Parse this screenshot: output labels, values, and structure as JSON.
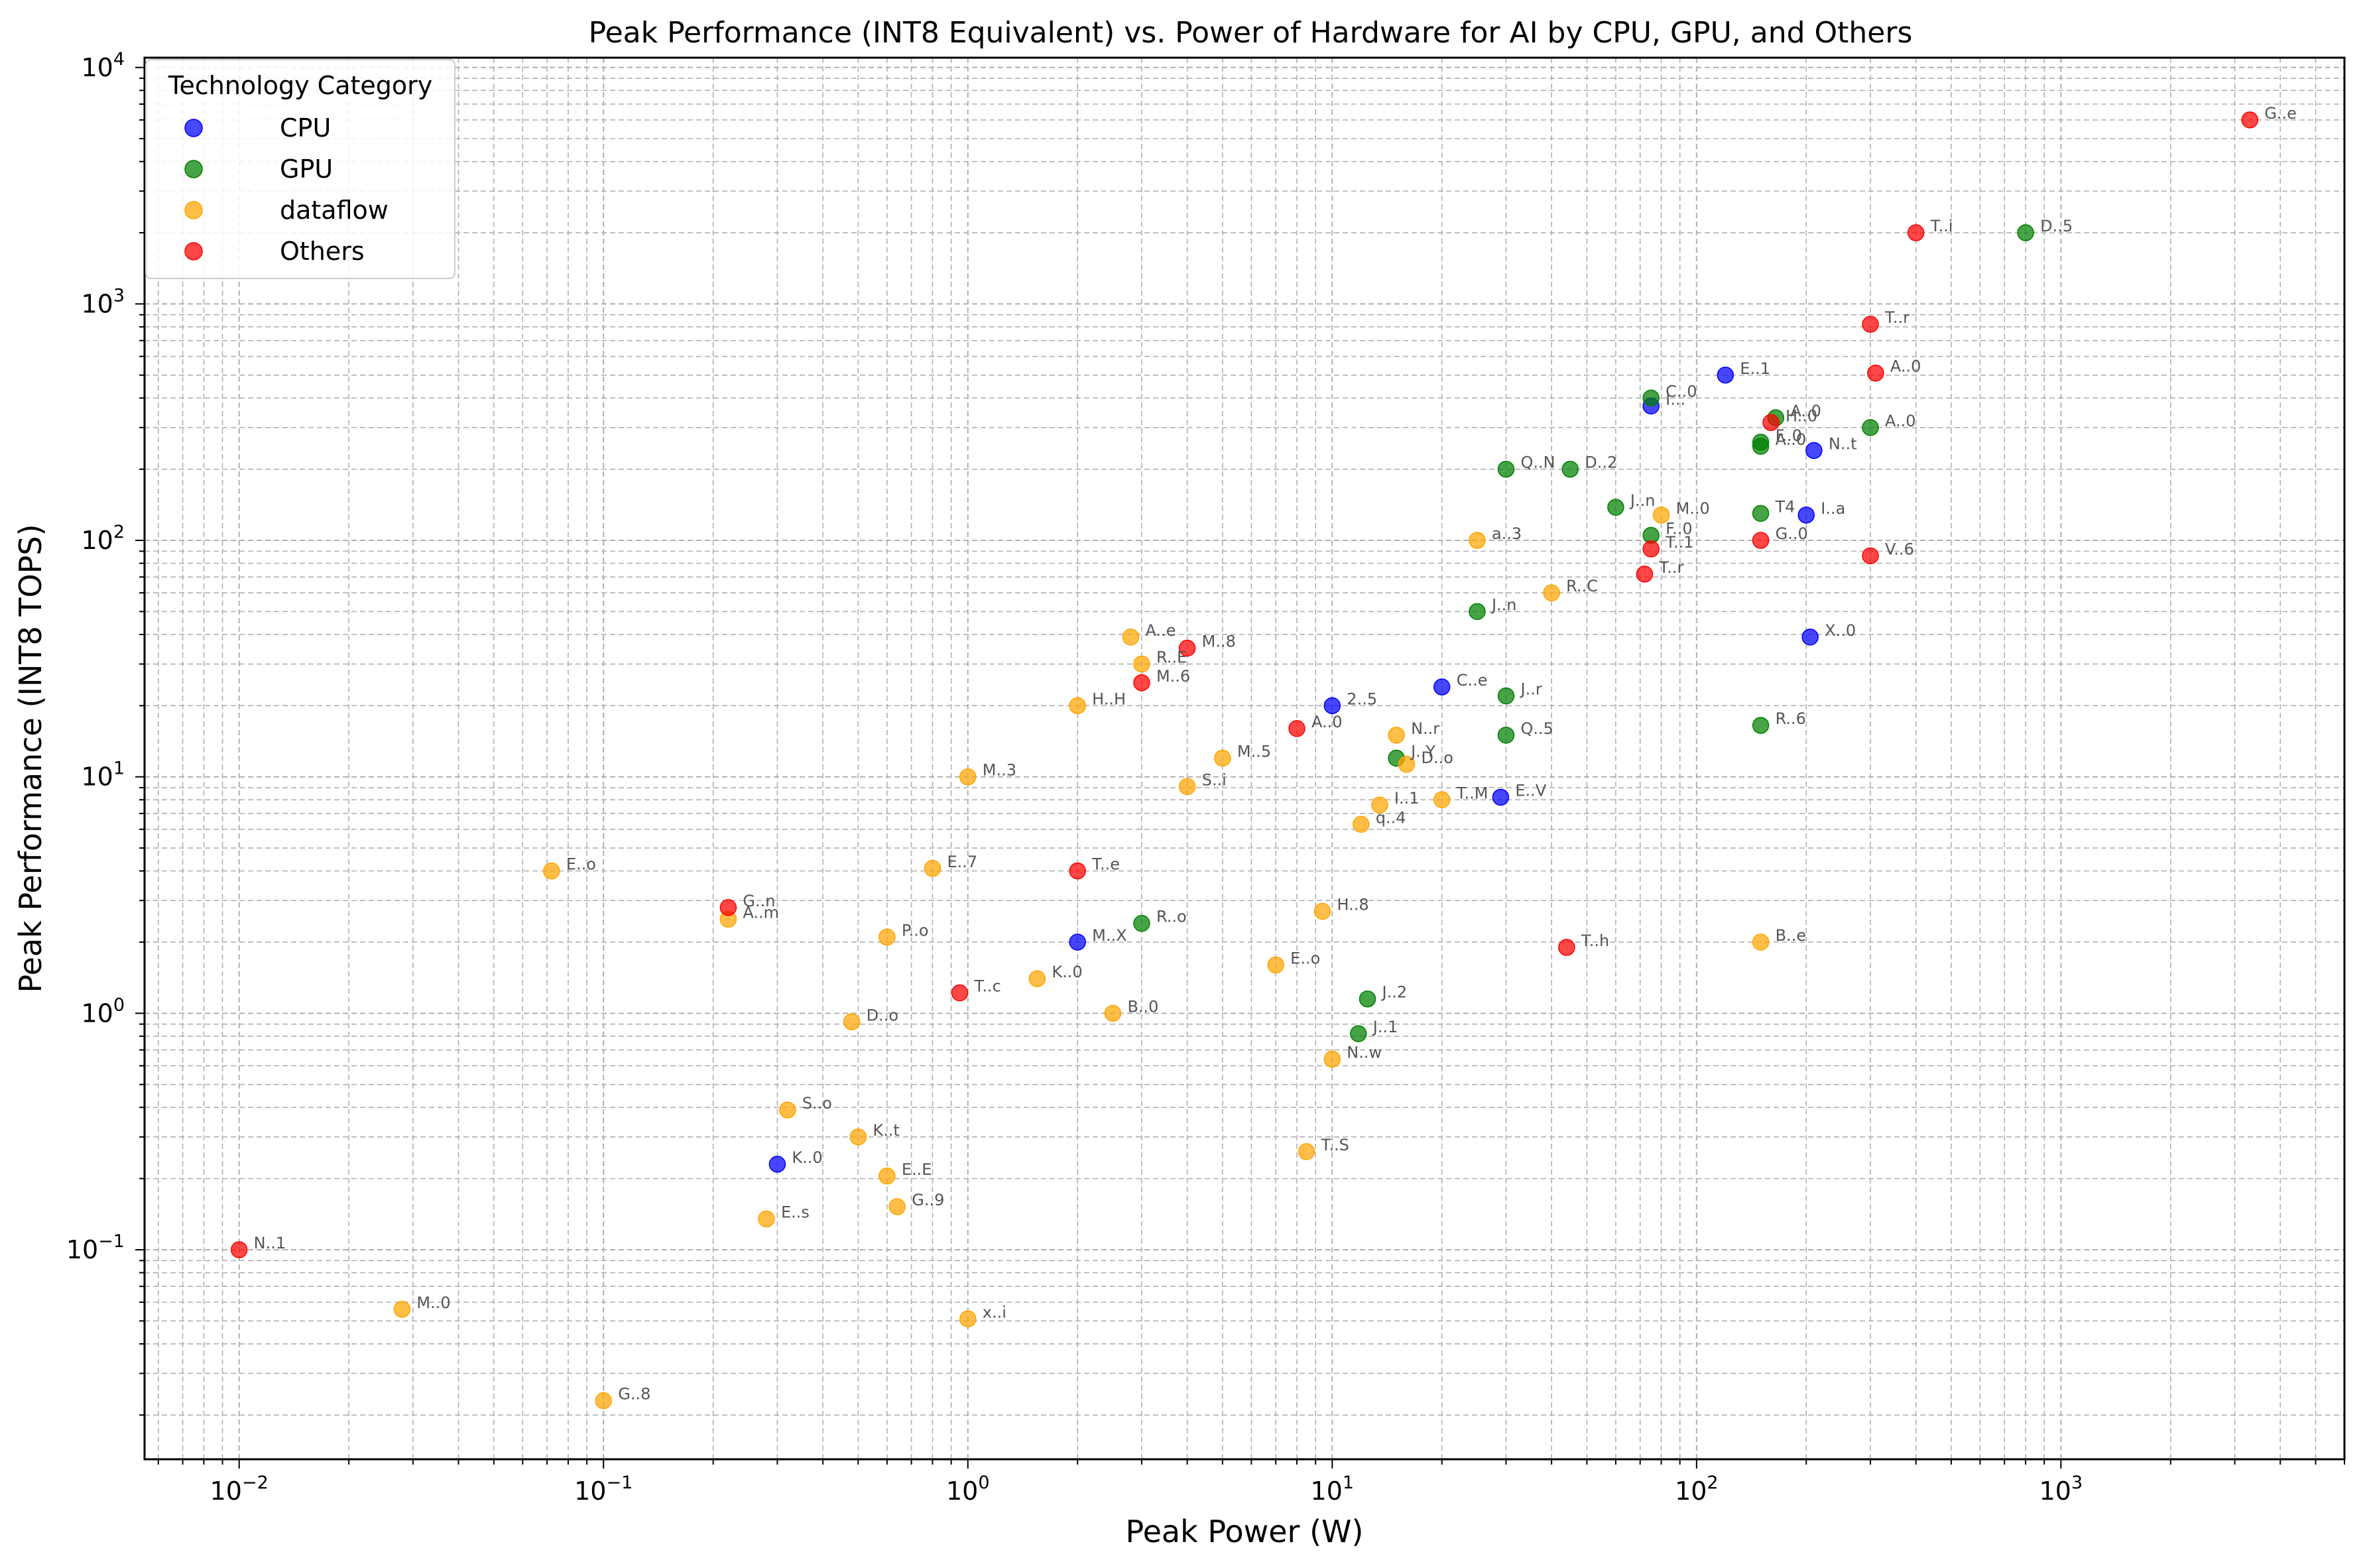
{
  "chart_data": {
    "type": "scatter",
    "title": "Peak Performance (INT8 Equivalent) vs. Power of Hardware for AI by CPU, GPU, and Others",
    "xlabel": "Peak Power (W)",
    "ylabel": "Peak Performance (INT8 TOPS)",
    "xscale": "log",
    "yscale": "log",
    "xlim": [
      0.0055,
      6000
    ],
    "ylim": [
      0.013,
      11000
    ],
    "grid": true,
    "x_ticks": [
      {
        "value": 0.01,
        "base": "10",
        "exp": "−2"
      },
      {
        "value": 0.1,
        "base": "10",
        "exp": "−1"
      },
      {
        "value": 1,
        "base": "10",
        "exp": "0"
      },
      {
        "value": 10,
        "base": "10",
        "exp": "1"
      },
      {
        "value": 100,
        "base": "10",
        "exp": "2"
      },
      {
        "value": 1000,
        "base": "10",
        "exp": "3"
      }
    ],
    "y_ticks": [
      {
        "value": 0.1,
        "base": "10",
        "exp": "−1"
      },
      {
        "value": 1,
        "base": "10",
        "exp": "0"
      },
      {
        "value": 10,
        "base": "10",
        "exp": "1"
      },
      {
        "value": 100,
        "base": "10",
        "exp": "2"
      },
      {
        "value": 1000,
        "base": "10",
        "exp": "3"
      },
      {
        "value": 10000,
        "base": "10",
        "exp": "4"
      }
    ],
    "legend": {
      "title": "Technology Category",
      "placement": "top-left",
      "entries": [
        {
          "name": "CPU",
          "color": "#0000ff"
        },
        {
          "name": "GPU",
          "color": "#008000"
        },
        {
          "name": "dataflow",
          "color": "#ffa500"
        },
        {
          "name": "Others",
          "color": "#ff0000"
        }
      ]
    },
    "series": [
      {
        "name": "CPU",
        "color": "#0000ff",
        "points": [
          {
            "x": 120,
            "y": 500,
            "label": "E..1"
          },
          {
            "x": 75,
            "y": 370,
            "label": "I..."
          },
          {
            "x": 210,
            "y": 240,
            "label": "N..t"
          },
          {
            "x": 200,
            "y": 128,
            "label": "I..a"
          },
          {
            "x": 205,
            "y": 39,
            "label": "X..0"
          },
          {
            "x": 20,
            "y": 24,
            "label": "C..e"
          },
          {
            "x": 10,
            "y": 20,
            "label": "2..5"
          },
          {
            "x": 29,
            "y": 8.2,
            "label": "E..V"
          },
          {
            "x": 2,
            "y": 2,
            "label": "M..X"
          },
          {
            "x": 0.3,
            "y": 0.23,
            "label": "K..0"
          }
        ]
      },
      {
        "name": "GPU",
        "color": "#008000",
        "points": [
          {
            "x": 800,
            "y": 2000,
            "label": "D..5"
          },
          {
            "x": 75,
            "y": 400,
            "label": "C..0"
          },
          {
            "x": 165,
            "y": 330,
            "label": "A..0"
          },
          {
            "x": 300,
            "y": 300,
            "label": "A..0"
          },
          {
            "x": 150,
            "y": 260,
            "label": "F..0"
          },
          {
            "x": 150,
            "y": 250,
            "label": "A..0"
          },
          {
            "x": 30,
            "y": 200,
            "label": "Q..N"
          },
          {
            "x": 45,
            "y": 200,
            "label": "D..2"
          },
          {
            "x": 60,
            "y": 138,
            "label": "J..n"
          },
          {
            "x": 150,
            "y": 130,
            "label": "T4"
          },
          {
            "x": 75,
            "y": 105,
            "label": "F..0"
          },
          {
            "x": 25,
            "y": 50,
            "label": "J..n"
          },
          {
            "x": 30,
            "y": 22,
            "label": "J..r"
          },
          {
            "x": 150,
            "y": 16.5,
            "label": "R..6"
          },
          {
            "x": 30,
            "y": 15,
            "label": "Q..5"
          },
          {
            "x": 15,
            "y": 12,
            "label": "J..Y"
          },
          {
            "x": 3,
            "y": 2.4,
            "label": "R..o"
          },
          {
            "x": 12.5,
            "y": 1.15,
            "label": "J..2"
          },
          {
            "x": 11.8,
            "y": 0.82,
            "label": "J..1"
          }
        ]
      },
      {
        "name": "dataflow",
        "color": "#ffa500",
        "points": [
          {
            "x": 80,
            "y": 128,
            "label": "M..0"
          },
          {
            "x": 25,
            "y": 100,
            "label": "a..3"
          },
          {
            "x": 40,
            "y": 60,
            "label": "R..C"
          },
          {
            "x": 2.8,
            "y": 39,
            "label": "A..e"
          },
          {
            "x": 3,
            "y": 30,
            "label": "R..E"
          },
          {
            "x": 2,
            "y": 20,
            "label": "H..H"
          },
          {
            "x": 15,
            "y": 15,
            "label": "N..r"
          },
          {
            "x": 5,
            "y": 12,
            "label": "M..5"
          },
          {
            "x": 16,
            "y": 11.3,
            "label": "D..o"
          },
          {
            "x": 1,
            "y": 10,
            "label": "M..3"
          },
          {
            "x": 4,
            "y": 9.1,
            "label": "S..i"
          },
          {
            "x": 20,
            "y": 8,
            "label": "T..M"
          },
          {
            "x": 13.5,
            "y": 7.6,
            "label": "I..1"
          },
          {
            "x": 12,
            "y": 6.3,
            "label": "q..4"
          },
          {
            "x": 0.072,
            "y": 4,
            "label": "E..o"
          },
          {
            "x": 0.8,
            "y": 4.1,
            "label": "E..7"
          },
          {
            "x": 9.4,
            "y": 2.7,
            "label": "H..8"
          },
          {
            "x": 0.22,
            "y": 2.5,
            "label": "A..m"
          },
          {
            "x": 0.6,
            "y": 2.1,
            "label": "P..o"
          },
          {
            "x": 7,
            "y": 1.6,
            "label": "E..o"
          },
          {
            "x": 1.55,
            "y": 1.4,
            "label": "K..0"
          },
          {
            "x": 2.5,
            "y": 1,
            "label": "B..0"
          },
          {
            "x": 0.48,
            "y": 0.92,
            "label": "D..o"
          },
          {
            "x": 10,
            "y": 0.64,
            "label": "N..w"
          },
          {
            "x": 0.32,
            "y": 0.39,
            "label": "S..o"
          },
          {
            "x": 0.5,
            "y": 0.3,
            "label": "K..t"
          },
          {
            "x": 8.5,
            "y": 0.26,
            "label": "T..S"
          },
          {
            "x": 0.6,
            "y": 0.205,
            "label": "E..E"
          },
          {
            "x": 0.64,
            "y": 0.152,
            "label": "G..9"
          },
          {
            "x": 0.28,
            "y": 0.135,
            "label": "E..s"
          },
          {
            "x": 0.028,
            "y": 0.056,
            "label": "M..0"
          },
          {
            "x": 1,
            "y": 0.051,
            "label": "x..i"
          },
          {
            "x": 0.1,
            "y": 0.023,
            "label": "G..8"
          },
          {
            "x": 150,
            "y": 2,
            "label": "B..e"
          }
        ]
      },
      {
        "name": "Others",
        "color": "#ff0000",
        "points": [
          {
            "x": 3300,
            "y": 6000,
            "label": "G..e"
          },
          {
            "x": 400,
            "y": 2000,
            "label": "T..i"
          },
          {
            "x": 300,
            "y": 820,
            "label": "T..r"
          },
          {
            "x": 310,
            "y": 510,
            "label": "A..0"
          },
          {
            "x": 160,
            "y": 315,
            "label": "H..0"
          },
          {
            "x": 150,
            "y": 100,
            "label": "G..0"
          },
          {
            "x": 75,
            "y": 92,
            "label": "T..1"
          },
          {
            "x": 300,
            "y": 86,
            "label": "V..6"
          },
          {
            "x": 72,
            "y": 72,
            "label": "T..r"
          },
          {
            "x": 4,
            "y": 35,
            "label": "M..8"
          },
          {
            "x": 3,
            "y": 25,
            "label": "M..6"
          },
          {
            "x": 8,
            "y": 16,
            "label": "A..0"
          },
          {
            "x": 2,
            "y": 4,
            "label": "T..e"
          },
          {
            "x": 0.22,
            "y": 2.8,
            "label": "G..n"
          },
          {
            "x": 44,
            "y": 1.9,
            "label": "T..h"
          },
          {
            "x": 0.95,
            "y": 1.22,
            "label": "T..c"
          },
          {
            "x": 0.01,
            "y": 0.1,
            "label": "N..1"
          }
        ]
      }
    ]
  }
}
